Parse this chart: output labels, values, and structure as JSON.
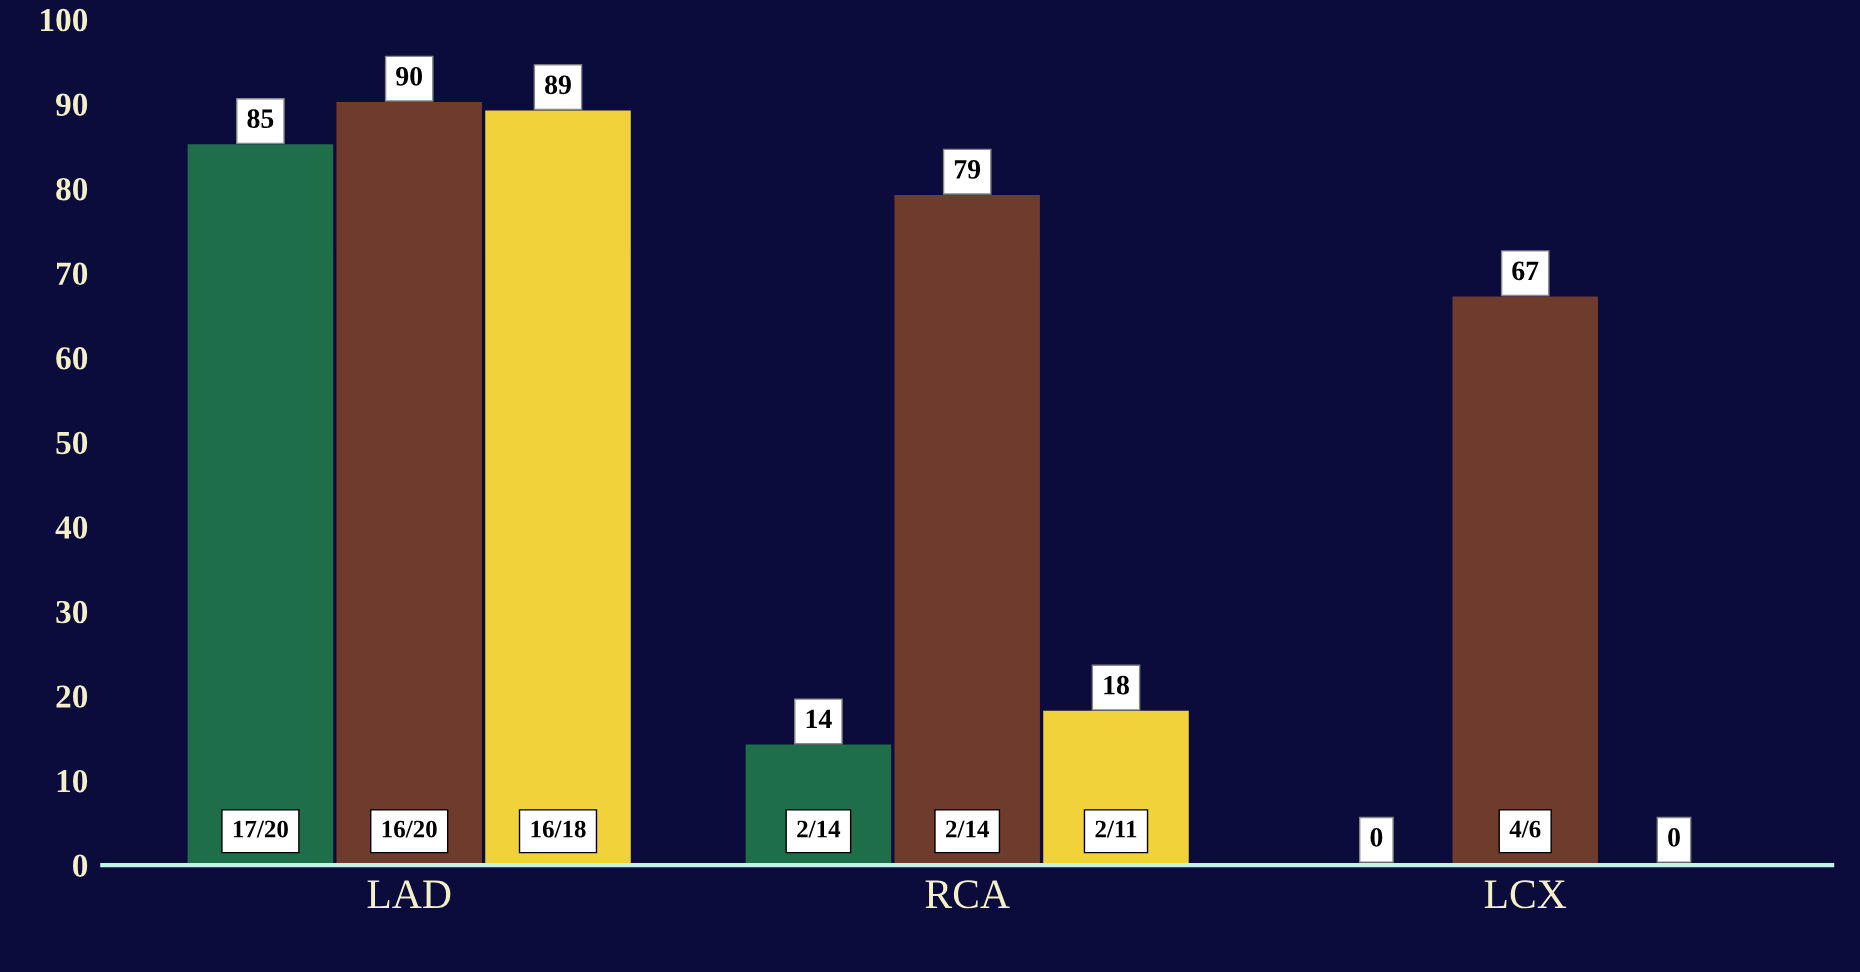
{
  "chart_data": {
    "type": "bar",
    "categories": [
      "LAD",
      "RCA",
      "LCX"
    ],
    "series": [
      {
        "color": "#1f6e4a",
        "values": [
          85,
          14,
          0
        ]
      },
      {
        "color": "#6e3b2c",
        "values": [
          90,
          79,
          67
        ]
      },
      {
        "color": "#f2d23a",
        "values": [
          89,
          18,
          0
        ]
      }
    ],
    "annotations": [
      "17/20",
      "16/20",
      "16/18",
      "2/14",
      "2/14",
      "2/11",
      "4/6"
    ],
    "ylim": [
      0,
      100
    ],
    "yticks": [
      0,
      10,
      20,
      30,
      40,
      50,
      60,
      70,
      80,
      90,
      100
    ],
    "data_labels": true,
    "grid": false,
    "legend": false
  }
}
